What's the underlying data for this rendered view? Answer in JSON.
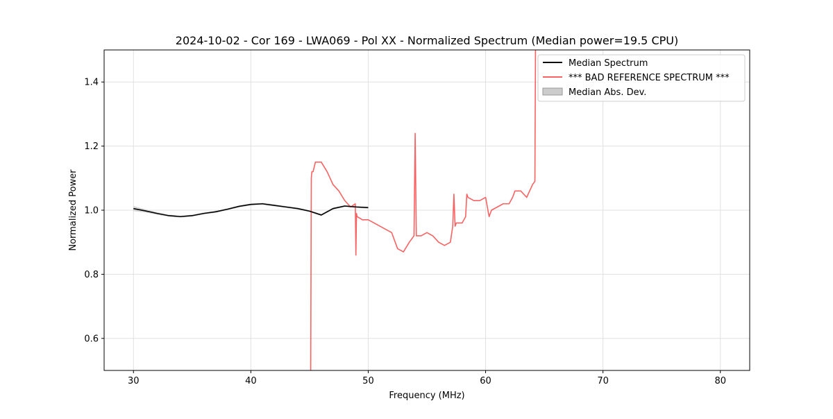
{
  "chart_data": {
    "type": "line",
    "title": "2024-10-02 - Cor 169 - LWA069 - Pol XX - Normalized Spectrum (Median power=19.5 CPU)",
    "xlabel": "Frequency (MHz)",
    "ylabel": "Normalized Power",
    "xlim": [
      27.5,
      82.5
    ],
    "ylim": [
      0.5,
      1.5
    ],
    "xticks": [
      30,
      40,
      50,
      60,
      70,
      80
    ],
    "yticks": [
      0.6,
      0.8,
      1.0,
      1.2,
      1.4
    ],
    "xtick_labels": [
      "30",
      "40",
      "50",
      "60",
      "70",
      "80"
    ],
    "ytick_labels": [
      "0.6",
      "0.8",
      "1.0",
      "1.2",
      "1.4"
    ],
    "grid": true,
    "legend_position": "top-right",
    "legend": [
      "Median Spectrum",
      "*** BAD REFERENCE SPECTRUM ***",
      "Median Abs. Dev."
    ],
    "series": [
      {
        "name": "Median Spectrum",
        "color": "#000000",
        "x": [
          30,
          31,
          32,
          33,
          34,
          35,
          36,
          37,
          38,
          39,
          40,
          41,
          42,
          43,
          44,
          45,
          46,
          47,
          48,
          49,
          50
        ],
        "y": [
          1.005,
          0.998,
          0.99,
          0.983,
          0.98,
          0.983,
          0.99,
          0.995,
          1.003,
          1.012,
          1.018,
          1.02,
          1.015,
          1.01,
          1.005,
          0.997,
          0.985,
          1.005,
          1.013,
          1.01,
          1.008
        ]
      },
      {
        "name": "*** BAD REFERENCE SPECTRUM ***",
        "color": "#f86262",
        "x": [
          45.1,
          45.15,
          45.2,
          45.3,
          45.5,
          46.0,
          46.5,
          47.0,
          47.5,
          48.0,
          48.5,
          48.9,
          48.95,
          49.0,
          49.05,
          49.5,
          50.0,
          50.5,
          51.0,
          51.5,
          52.0,
          52.5,
          53.0,
          53.5,
          53.9,
          54.0,
          54.1,
          54.5,
          55.0,
          55.5,
          56.0,
          56.5,
          57.0,
          57.2,
          57.3,
          57.4,
          57.5,
          58.0,
          58.3,
          58.4,
          58.5,
          59.0,
          59.5,
          60.0,
          60.3,
          60.5,
          61.0,
          61.5,
          62.0,
          62.3,
          62.5,
          63.0,
          63.5,
          64.0,
          64.2,
          64.25
        ],
        "y": [
          0.5,
          1.1,
          1.12,
          1.12,
          1.15,
          1.15,
          1.12,
          1.08,
          1.06,
          1.03,
          1.01,
          1.02,
          0.86,
          0.99,
          0.98,
          0.97,
          0.97,
          0.96,
          0.95,
          0.94,
          0.93,
          0.88,
          0.87,
          0.9,
          0.92,
          1.24,
          0.92,
          0.92,
          0.93,
          0.92,
          0.9,
          0.89,
          0.9,
          0.95,
          1.05,
          0.95,
          0.96,
          0.96,
          0.98,
          1.05,
          1.04,
          1.03,
          1.03,
          1.04,
          0.98,
          1.0,
          1.01,
          1.02,
          1.02,
          1.04,
          1.06,
          1.06,
          1.04,
          1.08,
          1.09,
          1.5
        ]
      }
    ],
    "band": {
      "name": "Median Abs. Dev.",
      "color": "#cccccc",
      "x": [
        30,
        31,
        32,
        33,
        34,
        35,
        36,
        37,
        38,
        39,
        40,
        41,
        42,
        43,
        44,
        45,
        46,
        47,
        48,
        49,
        50
      ],
      "lower": [
        0.997,
        0.993,
        0.986,
        0.98,
        0.977,
        0.98,
        0.987,
        0.992,
        1.0,
        1.009,
        1.015,
        1.017,
        1.012,
        1.007,
        1.002,
        0.994,
        0.982,
        1.002,
        1.01,
        1.007,
        1.005
      ],
      "upper": [
        1.013,
        1.003,
        0.994,
        0.986,
        0.983,
        0.986,
        0.993,
        0.998,
        1.006,
        1.015,
        1.021,
        1.023,
        1.018,
        1.013,
        1.008,
        1.0,
        0.988,
        1.008,
        1.016,
        1.013,
        1.011
      ]
    }
  }
}
